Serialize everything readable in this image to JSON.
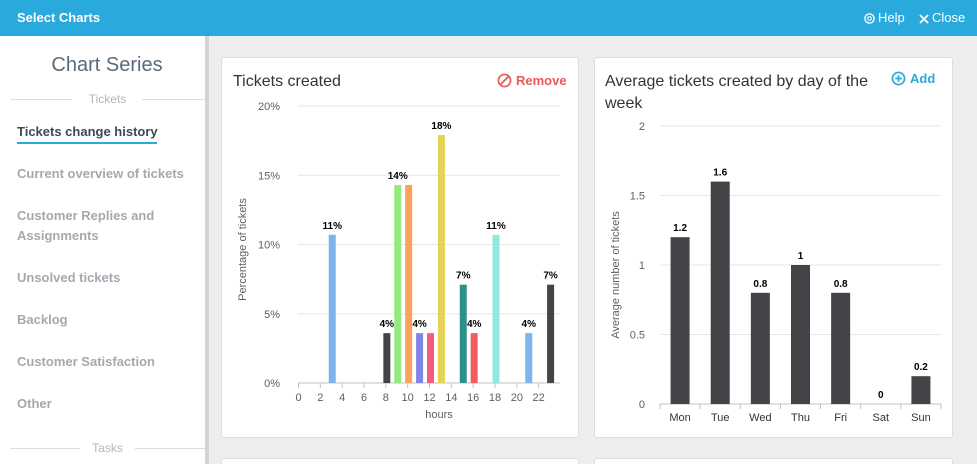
{
  "topbar": {
    "title": "Select Charts",
    "help_label": "Help",
    "close_label": "Close"
  },
  "sidebar": {
    "heading": "Chart Series",
    "section_tickets": "Tickets",
    "section_tasks": "Tasks",
    "items": [
      {
        "label": "Tickets change history",
        "active": true
      },
      {
        "label": "Current overview of tickets"
      },
      {
        "label": "Customer Replies and Assignments"
      },
      {
        "label": "Unsolved tickets"
      },
      {
        "label": "Backlog"
      },
      {
        "label": "Customer Satisfaction"
      },
      {
        "label": "Other"
      }
    ]
  },
  "cards": {
    "left": {
      "title": "Tickets created",
      "action_label": "Remove",
      "action_color": "#e8595a"
    },
    "right": {
      "title": "Average tickets created by day of the week",
      "action_label": "Add",
      "action_color": "#2aa9dc"
    }
  },
  "chart_data": [
    {
      "type": "bar",
      "xlabel": "hours",
      "ylabel": "Percentage of tickets",
      "ylim": [
        0,
        20
      ],
      "yticks": [
        "0%",
        "5%",
        "10%",
        "15%",
        "20%"
      ],
      "xticks": [
        "0",
        "2",
        "4",
        "6",
        "8",
        "10",
        "12",
        "14",
        "16",
        "18",
        "20",
        "22"
      ],
      "grid": "horizontal",
      "bars": [
        {
          "hour": 3,
          "value": 10.7,
          "label": "11%",
          "color": "#7cb5ec"
        },
        {
          "hour": 8,
          "value": 3.6,
          "label": "4%",
          "color": "#434348"
        },
        {
          "hour": 9,
          "value": 14.3,
          "label": "14%",
          "color": "#90ed7d"
        },
        {
          "hour": 10,
          "value": 14.3,
          "label": "",
          "color": "#f7a35c"
        },
        {
          "hour": 11,
          "value": 3.6,
          "label": "4%",
          "color": "#8085e9"
        },
        {
          "hour": 12,
          "value": 3.6,
          "label": "",
          "color": "#f15c80"
        },
        {
          "hour": 13,
          "value": 17.9,
          "label": "18%",
          "color": "#e4d354"
        },
        {
          "hour": 15,
          "value": 7.1,
          "label": "7%",
          "color": "#2b908f"
        },
        {
          "hour": 16,
          "value": 3.6,
          "label": "4%",
          "color": "#f45b5b"
        },
        {
          "hour": 18,
          "value": 10.7,
          "label": "11%",
          "color": "#91e8e1"
        },
        {
          "hour": 21,
          "value": 3.6,
          "label": "4%",
          "color": "#7cb5ec"
        },
        {
          "hour": 23,
          "value": 7.1,
          "label": "7%",
          "color": "#434348"
        }
      ]
    },
    {
      "type": "bar",
      "categories": [
        "Mon",
        "Tue",
        "Wed",
        "Thu",
        "Fri",
        "Sat",
        "Sun"
      ],
      "values": [
        1.2,
        1.6,
        0.8,
        1,
        0.8,
        0,
        0.2
      ],
      "labels": [
        "1.2",
        "1.6",
        "0.8",
        "1",
        "0.8",
        "0",
        "0.2"
      ],
      "ylabel": "Average number of tickets",
      "ylim": [
        0,
        2
      ],
      "yticks": [
        "0",
        "0.5",
        "1",
        "1.5",
        "2"
      ],
      "grid": "horizontal",
      "color": "#434348"
    }
  ]
}
